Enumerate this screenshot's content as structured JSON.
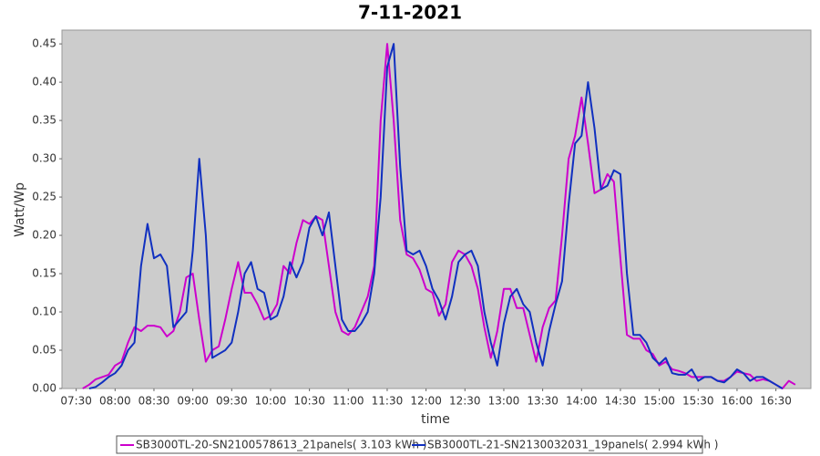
{
  "chart_data": {
    "type": "line",
    "title": "7-11-2021",
    "x_label": "time",
    "y_label": "Watt/Wp",
    "x": [
      "07:35",
      "07:40",
      "07:45",
      "07:50",
      "07:55",
      "08:00",
      "08:05",
      "08:10",
      "08:15",
      "08:20",
      "08:25",
      "08:30",
      "08:35",
      "08:40",
      "08:45",
      "08:50",
      "08:55",
      "09:00",
      "09:05",
      "09:10",
      "09:15",
      "09:20",
      "09:25",
      "09:30",
      "09:35",
      "09:40",
      "09:45",
      "09:50",
      "09:55",
      "10:00",
      "10:05",
      "10:10",
      "10:15",
      "10:20",
      "10:25",
      "10:30",
      "10:35",
      "10:40",
      "10:45",
      "10:50",
      "10:55",
      "11:00",
      "11:05",
      "11:10",
      "11:15",
      "11:20",
      "11:25",
      "11:30",
      "11:35",
      "11:40",
      "11:45",
      "11:50",
      "11:55",
      "12:00",
      "12:05",
      "12:10",
      "12:15",
      "12:20",
      "12:25",
      "12:30",
      "12:35",
      "12:40",
      "12:45",
      "12:50",
      "12:55",
      "13:00",
      "13:05",
      "13:10",
      "13:15",
      "13:20",
      "13:25",
      "13:30",
      "13:35",
      "13:40",
      "13:45",
      "13:50",
      "13:55",
      "14:00",
      "14:05",
      "14:10",
      "14:15",
      "14:20",
      "14:25",
      "14:30",
      "14:35",
      "14:40",
      "14:45",
      "14:50",
      "14:55",
      "15:00",
      "15:05",
      "15:10",
      "15:15",
      "15:20",
      "15:25",
      "15:30",
      "15:35",
      "15:40",
      "15:45",
      "15:50",
      "15:55",
      "16:00",
      "16:05",
      "16:10",
      "16:15",
      "16:20",
      "16:25",
      "16:30",
      "16:35",
      "16:40",
      "16:45"
    ],
    "series": [
      {
        "name": "SB3000TL-20-SN2100578613_21panels( 3.103 kWh )",
        "color": "#cc00cc",
        "values": [
          0,
          0.005,
          0.012,
          0.015,
          0.018,
          0.03,
          0.035,
          0.06,
          0.08,
          0.075,
          0.082,
          0.082,
          0.08,
          0.068,
          0.075,
          0.1,
          0.145,
          0.15,
          0.09,
          0.035,
          0.05,
          0.055,
          0.09,
          0.13,
          0.165,
          0.125,
          0.125,
          0.11,
          0.09,
          0.095,
          0.11,
          0.16,
          0.15,
          0.19,
          0.22,
          0.215,
          0.225,
          0.22,
          0.16,
          0.1,
          0.075,
          0.07,
          0.08,
          0.1,
          0.12,
          0.16,
          0.35,
          0.45,
          0.35,
          0.22,
          0.175,
          0.17,
          0.155,
          0.13,
          0.125,
          0.095,
          0.11,
          0.165,
          0.18,
          0.175,
          0.16,
          0.13,
          0.08,
          0.04,
          0.075,
          0.13,
          0.13,
          0.105,
          0.105,
          0.07,
          0.035,
          0.08,
          0.105,
          0.115,
          0.2,
          0.3,
          0.33,
          0.38,
          0.32,
          0.255,
          0.26,
          0.28,
          0.27,
          0.17,
          0.07,
          0.065,
          0.065,
          0.05,
          0.045,
          0.03,
          0.035,
          0.025,
          0.023,
          0.02,
          0.015,
          0.015,
          0.015,
          0.015,
          0.01,
          0.01,
          0.015,
          0.022,
          0.02,
          0.018,
          0.01,
          0.012,
          0.01,
          0.005,
          0,
          0.01,
          0.005
        ]
      },
      {
        "name": "SB3000TL-21-SN2130032031_19panels( 2.994 kWh )",
        "color": "#1030c0",
        "values": [
          null,
          0,
          0.002,
          0.008,
          0.015,
          0.02,
          0.03,
          0.05,
          0.06,
          0.16,
          0.215,
          0.17,
          0.175,
          0.16,
          0.08,
          0.09,
          0.1,
          0.18,
          0.3,
          0.2,
          0.04,
          0.045,
          0.05,
          0.06,
          0.1,
          0.15,
          0.165,
          0.13,
          0.125,
          0.09,
          0.095,
          0.12,
          0.165,
          0.145,
          0.165,
          0.21,
          0.225,
          0.2,
          0.23,
          0.16,
          0.09,
          0.075,
          0.075,
          0.085,
          0.1,
          0.15,
          0.25,
          0.42,
          0.45,
          0.29,
          0.18,
          0.175,
          0.18,
          0.16,
          0.13,
          0.115,
          0.09,
          0.12,
          0.165,
          0.175,
          0.18,
          0.16,
          0.1,
          0.06,
          0.03,
          0.085,
          0.12,
          0.13,
          0.11,
          0.1,
          0.06,
          0.03,
          0.075,
          0.11,
          0.14,
          0.24,
          0.32,
          0.33,
          0.4,
          0.34,
          0.26,
          0.265,
          0.285,
          0.28,
          0.15,
          0.07,
          0.07,
          0.06,
          0.04,
          0.032,
          0.04,
          0.02,
          0.018,
          0.018,
          0.025,
          0.01,
          0.015,
          0.015,
          0.01,
          0.008,
          0.015,
          0.025,
          0.02,
          0.01,
          0.015,
          0.015,
          0.01,
          0.005,
          0,
          null,
          null
        ]
      }
    ],
    "xlim": [
      "07:19",
      "16:57"
    ],
    "xticks": [
      "07:30",
      "08:00",
      "08:30",
      "09:00",
      "09:30",
      "10:00",
      "10:30",
      "11:00",
      "11:30",
      "12:00",
      "12:30",
      "13:00",
      "13:30",
      "14:00",
      "14:30",
      "15:00",
      "15:30",
      "16:00",
      "16:30"
    ],
    "ylim": [
      0,
      0.468
    ],
    "yticks": [
      {
        "value": 0,
        "label": "0.00"
      },
      0.05,
      {
        "value": 0.1,
        "label": "0.10"
      },
      0.15,
      {
        "value": 0.2,
        "label": "0.20"
      },
      0.25,
      {
        "value": 0.3,
        "label": "0.30"
      },
      0.35,
      {
        "value": 0.4,
        "label": "0.40"
      },
      0.45
    ],
    "grid": false,
    "legend": "bottom"
  }
}
